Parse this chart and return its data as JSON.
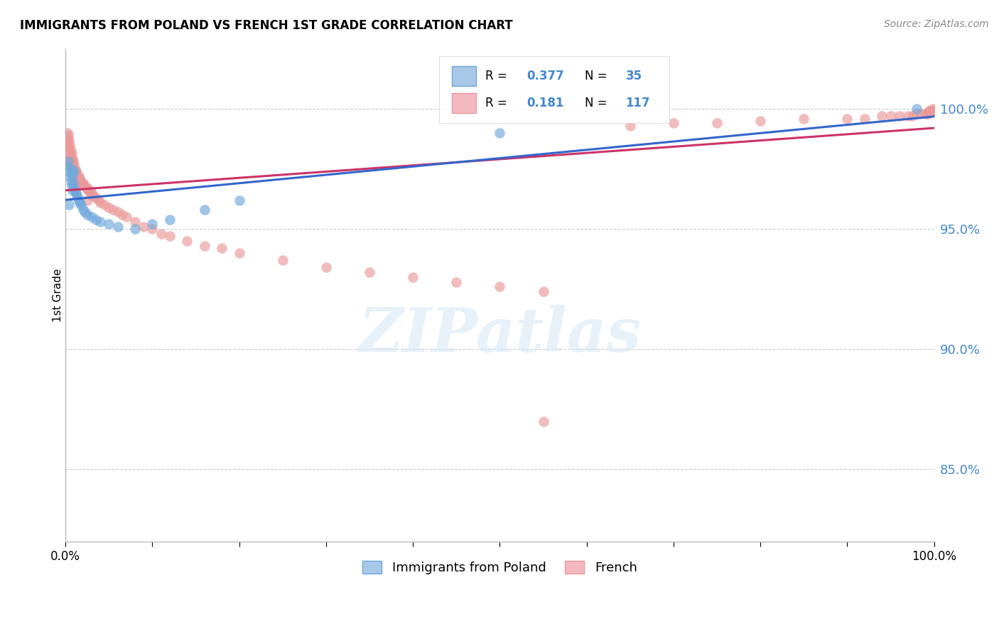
{
  "title": "IMMIGRANTS FROM POLAND VS FRENCH 1ST GRADE CORRELATION CHART",
  "source": "Source: ZipAtlas.com",
  "ylabel": "1st Grade",
  "ytick_labels": [
    "100.0%",
    "95.0%",
    "90.0%",
    "85.0%"
  ],
  "ytick_values": [
    1.0,
    0.95,
    0.9,
    0.85
  ],
  "xlim": [
    0.0,
    1.0
  ],
  "ylim": [
    0.82,
    1.025
  ],
  "legend_blue_label": "Immigrants from Poland",
  "legend_pink_label": "French",
  "R_blue": 0.377,
  "N_blue": 35,
  "R_pink": 0.181,
  "N_pink": 117,
  "blue_color": "#6fa8dc",
  "pink_color": "#ea9999",
  "blue_line_color": "#3366cc",
  "pink_line_color": "#cc3366",
  "blue_scatter_x": [
    0.002,
    0.003,
    0.004,
    0.005,
    0.006,
    0.007,
    0.007,
    0.008,
    0.008,
    0.009,
    0.01,
    0.01,
    0.011,
    0.012,
    0.013,
    0.014,
    0.015,
    0.016,
    0.018,
    0.02,
    0.022,
    0.025,
    0.03,
    0.035,
    0.04,
    0.05,
    0.06,
    0.08,
    0.1,
    0.12,
    0.16,
    0.2,
    0.004,
    0.5,
    0.98
  ],
  "blue_scatter_y": [
    0.976,
    0.978,
    0.974,
    0.972,
    0.97,
    0.968,
    0.975,
    0.966,
    0.972,
    0.969,
    0.967,
    0.974,
    0.966,
    0.965,
    0.964,
    0.963,
    0.962,
    0.961,
    0.96,
    0.958,
    0.957,
    0.956,
    0.955,
    0.954,
    0.953,
    0.952,
    0.951,
    0.95,
    0.952,
    0.954,
    0.958,
    0.962,
    0.96,
    0.99,
    1.0
  ],
  "pink_scatter_x": [
    0.002,
    0.002,
    0.003,
    0.003,
    0.003,
    0.004,
    0.004,
    0.004,
    0.005,
    0.005,
    0.005,
    0.005,
    0.006,
    0.006,
    0.006,
    0.006,
    0.007,
    0.007,
    0.007,
    0.007,
    0.008,
    0.008,
    0.008,
    0.008,
    0.009,
    0.009,
    0.009,
    0.01,
    0.01,
    0.01,
    0.01,
    0.011,
    0.011,
    0.012,
    0.012,
    0.013,
    0.013,
    0.014,
    0.015,
    0.015,
    0.016,
    0.017,
    0.018,
    0.019,
    0.02,
    0.02,
    0.022,
    0.024,
    0.025,
    0.026,
    0.028,
    0.03,
    0.032,
    0.035,
    0.038,
    0.04,
    0.045,
    0.05,
    0.055,
    0.06,
    0.065,
    0.07,
    0.08,
    0.09,
    0.1,
    0.11,
    0.12,
    0.14,
    0.16,
    0.18,
    0.2,
    0.25,
    0.3,
    0.35,
    0.4,
    0.45,
    0.5,
    0.55,
    0.03,
    0.025,
    0.55,
    0.65,
    0.7,
    0.75,
    0.8,
    0.85,
    0.9,
    0.92,
    0.94,
    0.95,
    0.96,
    0.97,
    0.975,
    0.98,
    0.985,
    0.99,
    0.992,
    0.993,
    0.994,
    0.995,
    0.996,
    0.997,
    0.997,
    0.998,
    0.998,
    0.999,
    0.999,
    0.999,
    0.999,
    0.999,
    0.999,
    0.999,
    0.999,
    0.999,
    0.999
  ],
  "pink_scatter_y": [
    0.99,
    0.988,
    0.989,
    0.986,
    0.984,
    0.987,
    0.984,
    0.982,
    0.985,
    0.982,
    0.98,
    0.978,
    0.983,
    0.98,
    0.978,
    0.976,
    0.981,
    0.979,
    0.977,
    0.975,
    0.979,
    0.977,
    0.975,
    0.973,
    0.978,
    0.975,
    0.973,
    0.977,
    0.975,
    0.973,
    0.971,
    0.975,
    0.973,
    0.974,
    0.972,
    0.973,
    0.971,
    0.972,
    0.972,
    0.97,
    0.971,
    0.97,
    0.97,
    0.969,
    0.969,
    0.968,
    0.968,
    0.967,
    0.967,
    0.966,
    0.966,
    0.965,
    0.964,
    0.963,
    0.962,
    0.961,
    0.96,
    0.959,
    0.958,
    0.957,
    0.956,
    0.955,
    0.953,
    0.951,
    0.95,
    0.948,
    0.947,
    0.945,
    0.943,
    0.942,
    0.94,
    0.937,
    0.934,
    0.932,
    0.93,
    0.928,
    0.926,
    0.924,
    0.964,
    0.962,
    0.87,
    0.993,
    0.994,
    0.994,
    0.995,
    0.996,
    0.996,
    0.996,
    0.997,
    0.997,
    0.997,
    0.997,
    0.997,
    0.998,
    0.998,
    0.998,
    0.998,
    0.998,
    0.999,
    0.999,
    0.999,
    0.999,
    0.999,
    0.999,
    0.999,
    0.999,
    0.999,
    0.999,
    0.999,
    0.999,
    0.999,
    0.999,
    0.999,
    0.999,
    1.0
  ]
}
